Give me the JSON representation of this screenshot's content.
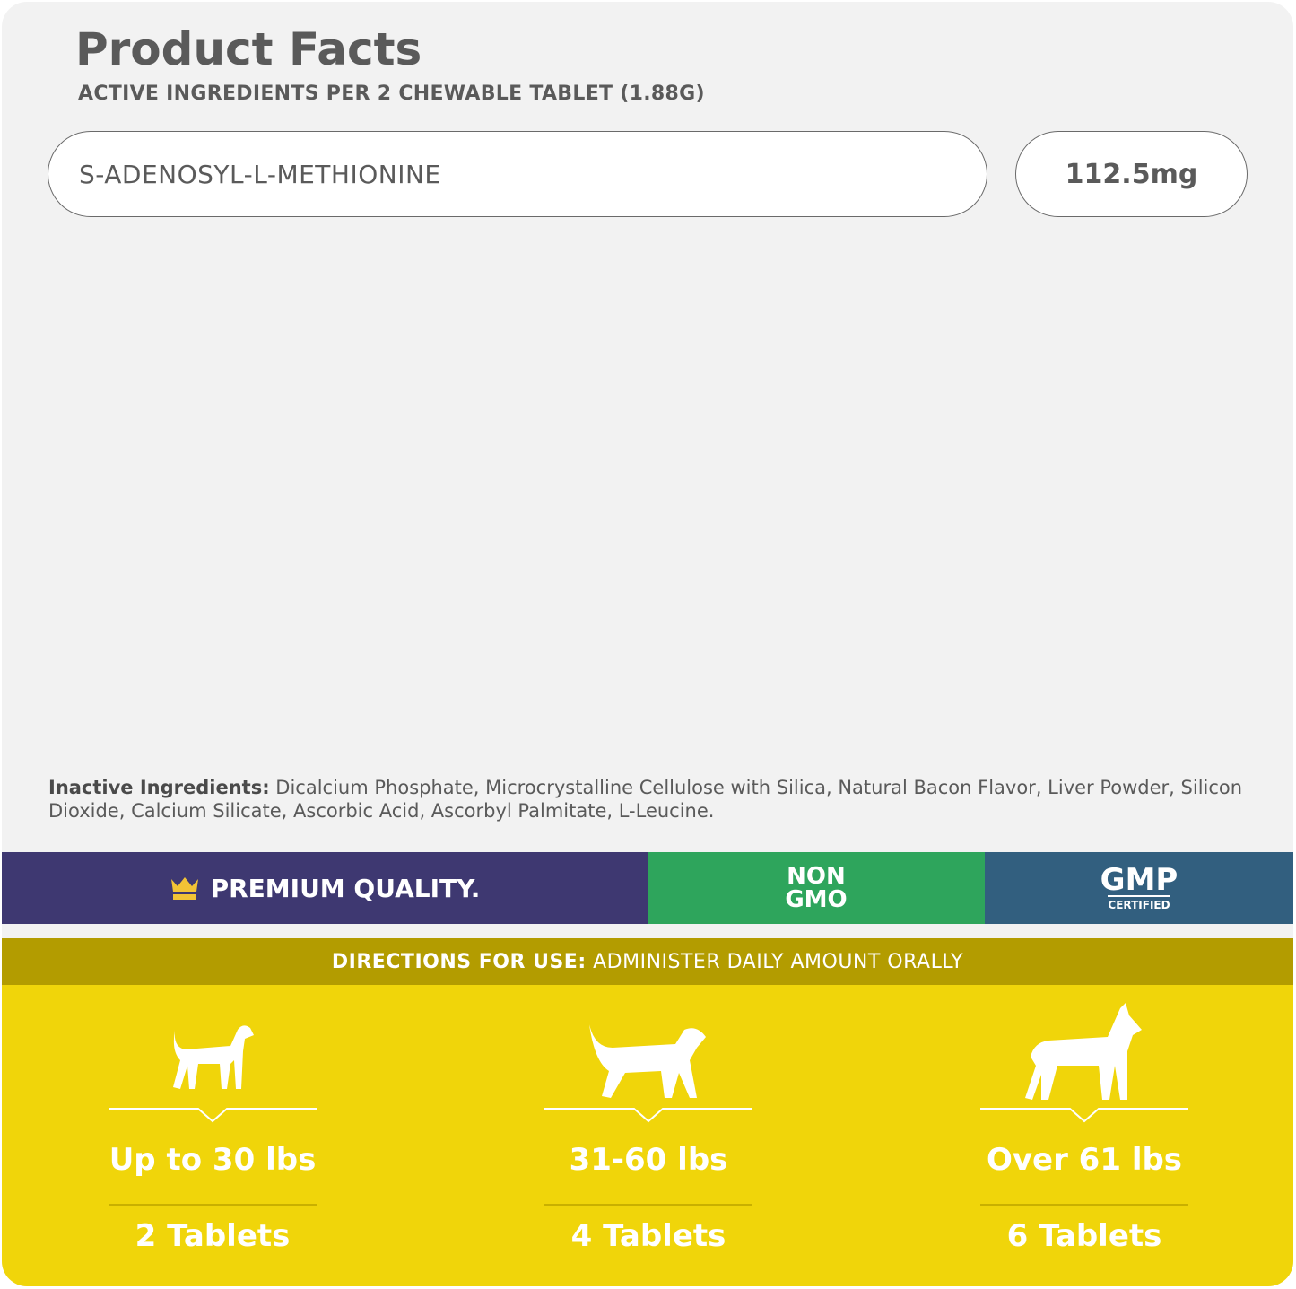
{
  "header": {
    "title": "Product Facts",
    "subtitle": "ACTIVE INGREDIENTS PER 2 CHEWABLE TABLET (1.88G)"
  },
  "active_ingredients": [
    {
      "name": "S-ADENOSYL-L-METHIONINE",
      "amount": "112.5mg"
    }
  ],
  "inactive": {
    "label": "Inactive Ingredients:",
    "text": " Dicalcium Phosphate, Microcrystalline Cellulose with Silica, Natural Bacon Flavor, Liver Powder, Silicon Dioxide, Calcium Silicate, Ascorbic Acid, Ascorbyl Palmitate, L-Leucine."
  },
  "badges": {
    "premium": "PREMIUM QUALITY.",
    "non": "NON",
    "gmo": "GMO",
    "gmp": "GMP",
    "certified": "CERTIFIED",
    "premium_icon": "crown-icon"
  },
  "directions": {
    "label": "DIRECTIONS FOR USE:",
    "text": " ADMINISTER DAILY AMOUNT ORALLY"
  },
  "dosage": [
    {
      "weight": "Up to 30 lbs",
      "tablets": "2 Tablets",
      "icon": "small-dog-icon"
    },
    {
      "weight": "31-60 lbs",
      "tablets": "4 Tablets",
      "icon": "medium-dog-icon"
    },
    {
      "weight": "Over 61 lbs",
      "tablets": "6 Tablets",
      "icon": "large-dog-icon"
    }
  ],
  "colors": {
    "purple": "#3e3871",
    "green": "#2ea55c",
    "blue": "#325f7f",
    "olive": "#b39c00",
    "yellow": "#f0d50a",
    "crown": "#f2c335"
  }
}
